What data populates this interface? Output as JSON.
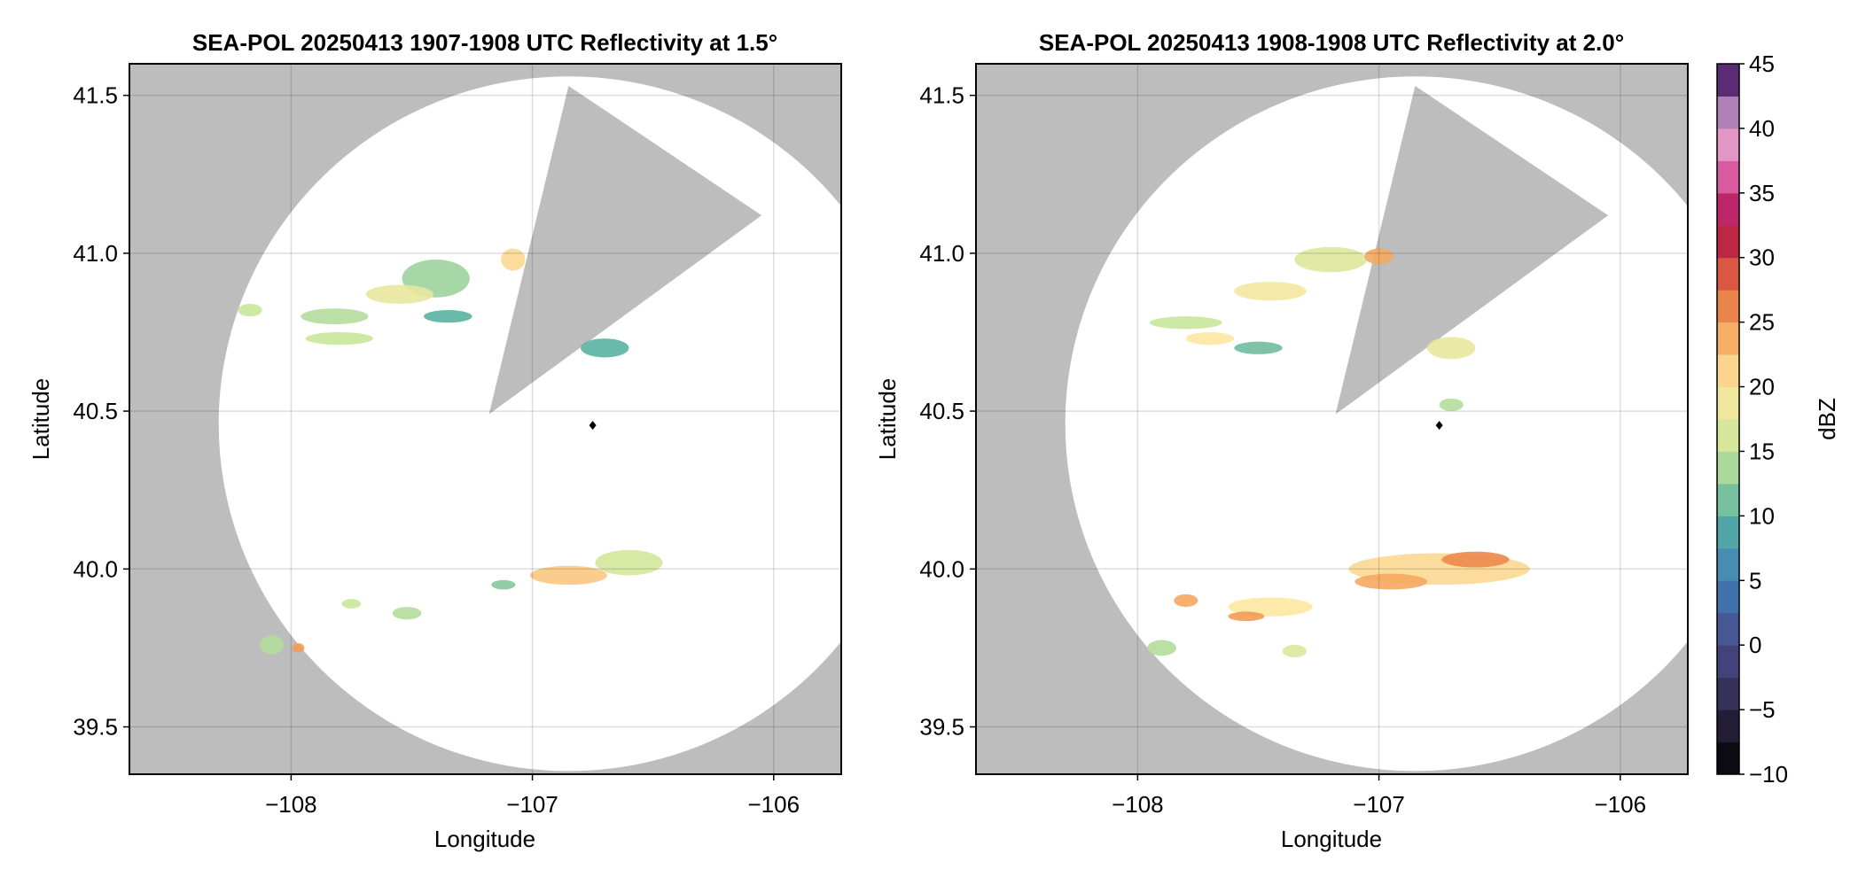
{
  "chart_data": [
    {
      "type": "heatmap",
      "title": "SEA-POL 20250413 1907-1908 UTC Reflectivity at 1.5°",
      "xlabel": "Longitude",
      "ylabel": "Latitude",
      "xlim": [
        -108.67,
        -105.72
      ],
      "ylim": [
        39.35,
        41.6
      ],
      "xticks": [
        -108,
        -107,
        -106
      ],
      "xtick_labels": [
        "−108",
        "−107",
        "−106"
      ],
      "yticks": [
        39.5,
        40.0,
        40.5,
        41.0,
        41.5
      ],
      "ytick_labels": [
        "39.5",
        "40.0",
        "40.5",
        "41.0",
        "41.5"
      ],
      "grid": true,
      "background_color": "#bdbdbd",
      "coverage_color": "#ffffff",
      "radar_site": {
        "lon": -106.75,
        "lat": 40.455
      },
      "range_circle": {
        "center_lon": -106.85,
        "center_lat": 40.46,
        "radius_lon": 1.45,
        "radius_lat": 1.1
      },
      "blocked_sector": [
        [
          -107.18,
          40.49
        ],
        [
          -106.85,
          41.53
        ],
        [
          -106.05,
          41.12
        ]
      ],
      "echoes": [
        {
          "lon": -107.4,
          "lat": 40.92,
          "dbz": 13,
          "w": 0.28,
          "h": 0.12
        },
        {
          "lon": -107.08,
          "lat": 40.98,
          "dbz": 21,
          "w": 0.1,
          "h": 0.07
        },
        {
          "lon": -107.35,
          "lat": 40.8,
          "dbz": 10,
          "w": 0.2,
          "h": 0.04
        },
        {
          "lon": -107.55,
          "lat": 40.87,
          "dbz": 18,
          "w": 0.28,
          "h": 0.06
        },
        {
          "lon": -107.82,
          "lat": 40.8,
          "dbz": 14,
          "w": 0.28,
          "h": 0.05
        },
        {
          "lon": -108.17,
          "lat": 40.82,
          "dbz": 15,
          "w": 0.1,
          "h": 0.04
        },
        {
          "lon": -107.8,
          "lat": 40.73,
          "dbz": 15,
          "w": 0.28,
          "h": 0.04
        },
        {
          "lon": -106.7,
          "lat": 40.7,
          "dbz": 10,
          "w": 0.2,
          "h": 0.06
        },
        {
          "lon": -106.6,
          "lat": 40.02,
          "dbz": 16,
          "w": 0.28,
          "h": 0.08
        },
        {
          "lon": -106.85,
          "lat": 39.98,
          "dbz": 22,
          "w": 0.32,
          "h": 0.06
        },
        {
          "lon": -108.08,
          "lat": 39.76,
          "dbz": 14,
          "w": 0.1,
          "h": 0.06
        },
        {
          "lon": -107.97,
          "lat": 39.75,
          "dbz": 25,
          "w": 0.05,
          "h": 0.03
        },
        {
          "lon": -107.75,
          "lat": 39.89,
          "dbz": 15,
          "w": 0.08,
          "h": 0.03
        },
        {
          "lon": -107.52,
          "lat": 39.86,
          "dbz": 14,
          "w": 0.12,
          "h": 0.04
        },
        {
          "lon": -107.12,
          "lat": 39.95,
          "dbz": 12,
          "w": 0.1,
          "h": 0.03
        }
      ]
    },
    {
      "type": "heatmap",
      "title": "SEA-POL 20250413 1908-1908 UTC Reflectivity at 2.0°",
      "xlabel": "Longitude",
      "ylabel": "Latitude",
      "xlim": [
        -108.67,
        -105.72
      ],
      "ylim": [
        39.35,
        41.6
      ],
      "xticks": [
        -108,
        -107,
        -106
      ],
      "xtick_labels": [
        "−108",
        "−107",
        "−106"
      ],
      "yticks": [
        39.5,
        40.0,
        40.5,
        41.0,
        41.5
      ],
      "ytick_labels": [
        "39.5",
        "40.0",
        "40.5",
        "41.0",
        "41.5"
      ],
      "grid": true,
      "background_color": "#bdbdbd",
      "coverage_color": "#ffffff",
      "radar_site": {
        "lon": -106.75,
        "lat": 40.455
      },
      "range_circle": {
        "center_lon": -106.85,
        "center_lat": 40.46,
        "radius_lon": 1.45,
        "radius_lat": 1.1
      },
      "blocked_sector": [
        [
          -107.18,
          40.49
        ],
        [
          -106.85,
          41.53
        ],
        [
          -106.05,
          41.12
        ]
      ],
      "echoes": [
        {
          "lon": -107.2,
          "lat": 40.98,
          "dbz": 17,
          "w": 0.3,
          "h": 0.08
        },
        {
          "lon": -107.0,
          "lat": 40.99,
          "dbz": 24,
          "w": 0.12,
          "h": 0.05
        },
        {
          "lon": -107.45,
          "lat": 40.88,
          "dbz": 19,
          "w": 0.3,
          "h": 0.06
        },
        {
          "lon": -107.8,
          "lat": 40.78,
          "dbz": 15,
          "w": 0.3,
          "h": 0.04
        },
        {
          "lon": -107.7,
          "lat": 40.73,
          "dbz": 20,
          "w": 0.2,
          "h": 0.04
        },
        {
          "lon": -107.5,
          "lat": 40.7,
          "dbz": 11,
          "w": 0.2,
          "h": 0.04
        },
        {
          "lon": -106.7,
          "lat": 40.7,
          "dbz": 18,
          "w": 0.2,
          "h": 0.07
        },
        {
          "lon": -106.7,
          "lat": 40.52,
          "dbz": 14,
          "w": 0.1,
          "h": 0.04
        },
        {
          "lon": -106.75,
          "lat": 40.0,
          "dbz": 21,
          "w": 0.75,
          "h": 0.1
        },
        {
          "lon": -106.6,
          "lat": 40.03,
          "dbz": 26,
          "w": 0.28,
          "h": 0.05
        },
        {
          "lon": -106.95,
          "lat": 39.96,
          "dbz": 24,
          "w": 0.3,
          "h": 0.05
        },
        {
          "lon": -107.45,
          "lat": 39.88,
          "dbz": 20,
          "w": 0.35,
          "h": 0.06
        },
        {
          "lon": -107.55,
          "lat": 39.85,
          "dbz": 25,
          "w": 0.15,
          "h": 0.03
        },
        {
          "lon": -107.8,
          "lat": 39.9,
          "dbz": 24,
          "w": 0.1,
          "h": 0.04
        },
        {
          "lon": -107.9,
          "lat": 39.75,
          "dbz": 14,
          "w": 0.12,
          "h": 0.05
        },
        {
          "lon": -107.35,
          "lat": 39.74,
          "dbz": 17,
          "w": 0.1,
          "h": 0.04
        }
      ]
    }
  ],
  "colorbar": {
    "label": "dBZ",
    "min": -10,
    "max": 45,
    "step": 2.5,
    "ticks": [
      -10,
      -5,
      0,
      5,
      10,
      15,
      20,
      25,
      30,
      35,
      40,
      45
    ],
    "tick_labels": [
      "−10",
      "−5",
      "0",
      "5",
      "10",
      "15",
      "20",
      "25",
      "30",
      "35",
      "40",
      "45"
    ],
    "colormap": [
      [
        -10,
        "#000000"
      ],
      [
        -5,
        "#2e2848"
      ],
      [
        0,
        "#4a4a8a"
      ],
      [
        5,
        "#3f7fb8"
      ],
      [
        10,
        "#5ab3a2"
      ],
      [
        15,
        "#c9e79a"
      ],
      [
        20,
        "#fde7a1"
      ],
      [
        25,
        "#f39a52"
      ],
      [
        30,
        "#d0403e"
      ],
      [
        32.5,
        "#a80f47"
      ],
      [
        35,
        "#d33c8d"
      ],
      [
        40,
        "#e8b4d5"
      ],
      [
        42.5,
        "#7b4c9c"
      ],
      [
        45,
        "#3b0b4a"
      ]
    ]
  }
}
